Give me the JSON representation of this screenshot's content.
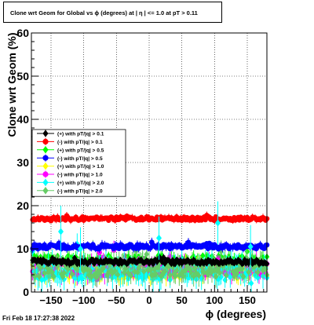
{
  "title": "Clone wrt Geom for Global vs ϕ (degrees) at |  η | <= 1.0 at pT > 0.11",
  "footer": "Fri Feb 18 17:27:38 2022",
  "chart_data": {
    "type": "scatter",
    "title": "Clone wrt Geom for Global vs ϕ (degrees) at |  η | <= 1.0 at pT > 0.11",
    "xlabel": "ϕ (degrees)",
    "ylabel": "Clone wrt Geom (%)",
    "xlim": [
      -180,
      180
    ],
    "ylim": [
      0,
      60
    ],
    "xticks": [
      -150,
      -100,
      -50,
      0,
      50,
      100,
      150
    ],
    "yticks": [
      0,
      10,
      20,
      30,
      40,
      50,
      60
    ],
    "xtick_labels": [
      "−150",
      "−100",
      "−50",
      "0",
      "50",
      "100",
      "150"
    ],
    "ytick_labels": [
      "0",
      "10",
      "20",
      "30",
      "40",
      "50",
      "60"
    ],
    "grid": true,
    "legend_position": "middle-left",
    "series": [
      {
        "name": "(+) with pT/|q| > 0.1",
        "color": "#000000",
        "marker": "diamond",
        "level": 7.0,
        "spread": 0.5,
        "err": 0.6
      },
      {
        "name": "(-) with pT/|q| > 0.1",
        "color": "#ff0000",
        "marker": "circle",
        "level": 17.0,
        "spread": 0.4,
        "err": 0.6
      },
      {
        "name": "(+) with pT/|q| > 0.5",
        "color": "#00ff00",
        "marker": "diamond",
        "level": 7.0,
        "spread": 1.5,
        "err": 1.2
      },
      {
        "name": "(-) with pT/|q| > 0.5",
        "color": "#0000ff",
        "marker": "circle",
        "level": 10.5,
        "spread": 0.5,
        "err": 0.7
      },
      {
        "name": "(+) with pT/|q| > 1.0",
        "color": "#ffff00",
        "marker": "diamond",
        "level": 5.0,
        "spread": 1.8,
        "err": 1.5
      },
      {
        "name": "(-) with pT/|q| > 1.0",
        "color": "#ff00ff",
        "marker": "circle",
        "level": 5.5,
        "spread": 1.8,
        "err": 1.5
      },
      {
        "name": "(+) with pT/|q| > 2.0",
        "color": "#00ffff",
        "marker": "diamond",
        "level": 5.0,
        "spread": 2.2,
        "err": 2.0
      },
      {
        "name": "(-) with pT/|q| > 2.0",
        "color": "#66cc66",
        "marker": "diamond",
        "level": 5.5,
        "spread": 2.0,
        "err": 1.8
      }
    ]
  }
}
